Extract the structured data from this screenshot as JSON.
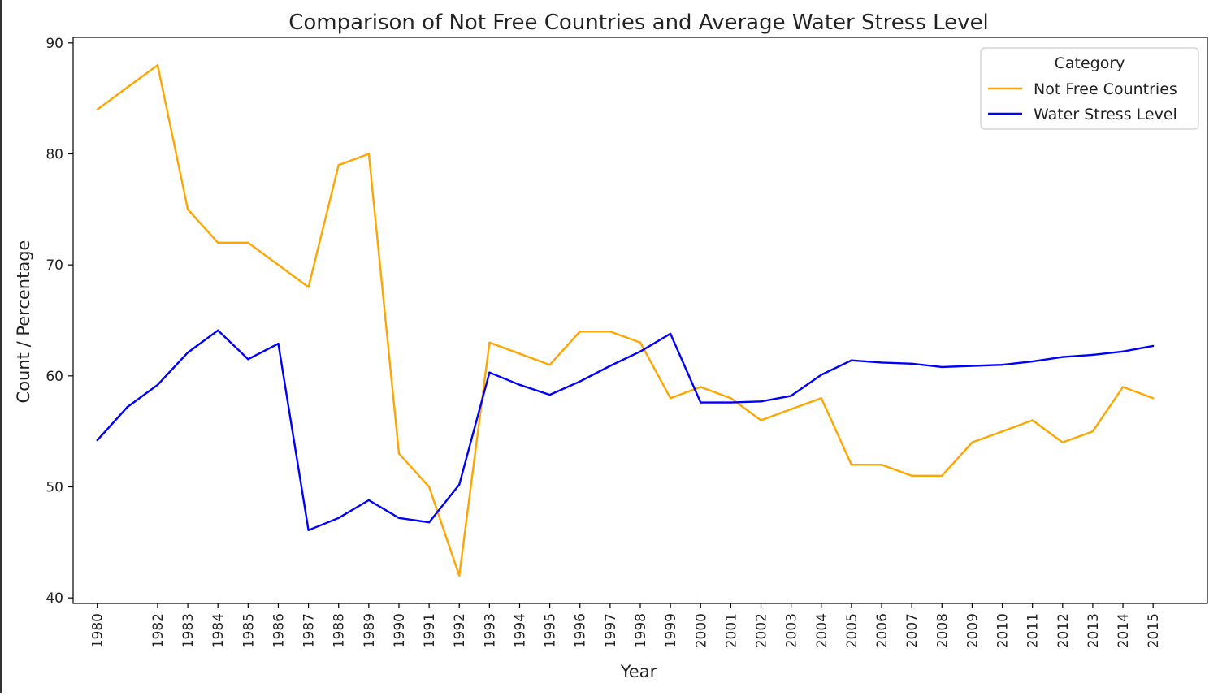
{
  "chart_data": {
    "type": "line",
    "title": "Comparison of Not Free Countries and Average Water Stress Level",
    "xlabel": "Year",
    "ylabel": "Count / Percentage",
    "x_tick_labels": [
      "1980",
      "1982",
      "1983",
      "1984",
      "1985",
      "1986",
      "1987",
      "1988",
      "1989",
      "1990",
      "1991",
      "1992",
      "1993",
      "1994",
      "1995",
      "1996",
      "1997",
      "1998",
      "1999",
      "2000",
      "2001",
      "2002",
      "2003",
      "2004",
      "2005",
      "2006",
      "2007",
      "2008",
      "2009",
      "2010",
      "2011",
      "2012",
      "2013",
      "2014",
      "2015"
    ],
    "xlim": [
      1979.2,
      2016.8
    ],
    "ylim": [
      39.5,
      90.5
    ],
    "y_ticks": [
      40,
      50,
      60,
      70,
      80,
      90
    ],
    "grid": false,
    "legend": {
      "title": "Category",
      "placement": "top-right"
    },
    "series": [
      {
        "name": "Not Free Countries",
        "color": "#FFA500",
        "x": [
          1980,
          1981,
          1982,
          1983,
          1984,
          1985,
          1986,
          1987,
          1988,
          1989,
          1990,
          1991,
          1992,
          1993,
          1994,
          1995,
          1996,
          1997,
          1998,
          1999,
          2000,
          2001,
          2002,
          2003,
          2004,
          2005,
          2006,
          2007,
          2008,
          2009,
          2010,
          2011,
          2012,
          2013,
          2014,
          2015
        ],
        "values": [
          84,
          86,
          88,
          75,
          72,
          72,
          70,
          68,
          79,
          80,
          53,
          50,
          42,
          63,
          62,
          61,
          64,
          64,
          63,
          58,
          59,
          58,
          56,
          57,
          58,
          52,
          52,
          51,
          51,
          54,
          55,
          56,
          54,
          55,
          59,
          58
        ]
      },
      {
        "name": "Water Stress Level",
        "color": "#0000FF",
        "x": [
          1980,
          1981,
          1982,
          1983,
          1984,
          1985,
          1986,
          1987,
          1988,
          1989,
          1990,
          1991,
          1992,
          1993,
          1994,
          1995,
          1996,
          1997,
          1998,
          1999,
          2000,
          2001,
          2002,
          2003,
          2004,
          2005,
          2006,
          2007,
          2008,
          2009,
          2010,
          2011,
          2012,
          2013,
          2014,
          2015
        ],
        "values": [
          54.2,
          57.2,
          59.2,
          62.1,
          64.1,
          61.5,
          62.9,
          46.1,
          47.2,
          48.8,
          47.2,
          46.8,
          50.2,
          60.3,
          59.2,
          58.3,
          59.5,
          60.9,
          62.2,
          63.8,
          57.6,
          57.6,
          57.7,
          58.2,
          60.1,
          61.4,
          61.2,
          61.1,
          60.8,
          60.9,
          61.0,
          61.3,
          61.7,
          61.9,
          62.2,
          62.7
        ]
      }
    ]
  }
}
